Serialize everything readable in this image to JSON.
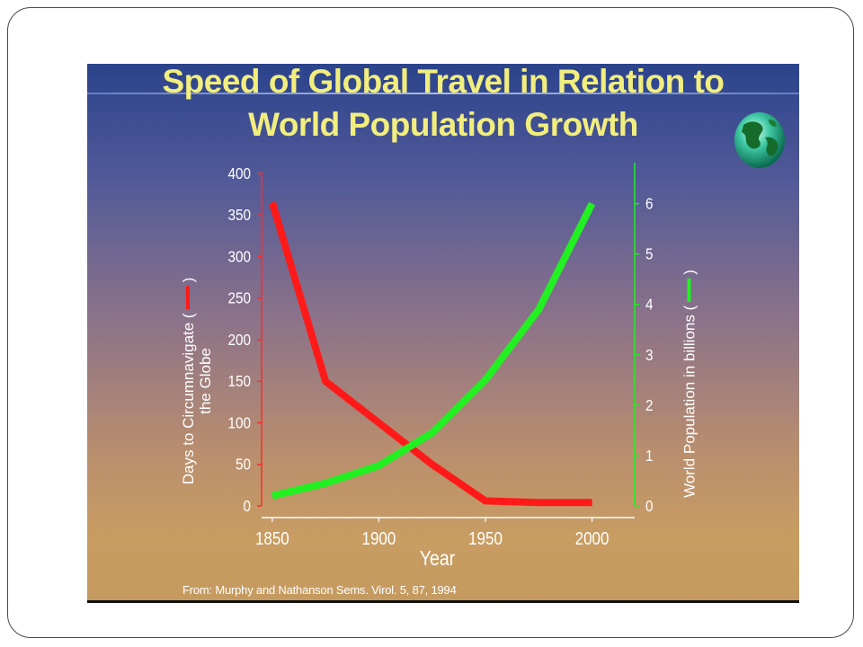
{
  "slide": {
    "title_line1": "Speed of Global Travel in Relation to",
    "title_line2": "World Population Growth",
    "source": "From: Murphy and Nathanson Sems. Virol. 5, 87, 1994",
    "globe_icon": "globe-icon"
  },
  "chart_data": {
    "type": "line",
    "xlabel": "Year",
    "x_ticks": [
      "1850",
      "1900",
      "1950",
      "2000"
    ],
    "xlim": [
      1845,
      2020
    ],
    "left_axis": {
      "label_line1": "Days to Circumnavigate (",
      "label_close": ")",
      "label_line2": "the Globe",
      "ticks": [
        "0",
        "50",
        "100",
        "150",
        "200",
        "250",
        "300",
        "350",
        "400"
      ],
      "ylim": [
        0,
        400
      ],
      "color": "#ff2a2a"
    },
    "right_axis": {
      "label": "World Population in billions (",
      "label_close": ")",
      "ticks": [
        "0",
        "1",
        "2",
        "3",
        "4",
        "5",
        "6"
      ],
      "ylim": [
        0,
        6.6
      ],
      "color": "#22ee22"
    },
    "series": [
      {
        "axis": "left",
        "color": "#ff1a1a",
        "x": [
          1850,
          1875,
          1900,
          1925,
          1950,
          1975,
          2000
        ],
        "y": [
          365,
          150,
          100,
          50,
          6,
          4,
          4
        ]
      },
      {
        "axis": "right",
        "color": "#22f022",
        "x": [
          1850,
          1875,
          1900,
          1925,
          1950,
          1975,
          2000
        ],
        "y": [
          0.2,
          0.45,
          0.8,
          1.45,
          2.5,
          3.9,
          6.0
        ]
      }
    ]
  }
}
